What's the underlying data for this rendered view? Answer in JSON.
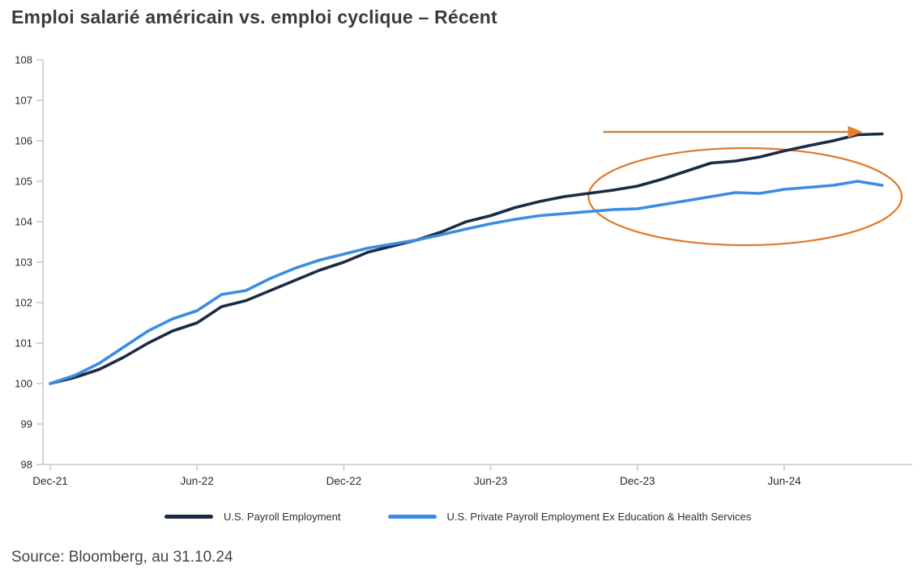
{
  "title": "Emploi salarié américain vs. emploi cyclique – Récent",
  "source": "Source: Bloomberg, au 31.10.24",
  "legend": [
    {
      "label": "U.S. Payroll Employment",
      "color": "#1b2b44"
    },
    {
      "label": "U.S. Private Payroll Employment Ex Education & Health Services",
      "color": "#3a8ce4"
    }
  ],
  "colors": {
    "navy": "#1b2b44",
    "blue": "#3a8ce4",
    "orange_ellipse": "#e0782a",
    "orange_arrow": "#c98443",
    "orange_arrowhead": "#e8812b",
    "axis": "#c9c9c9",
    "tick_text": "#2a2a2a",
    "title_text": "#3b3b3b",
    "source_text": "#454545"
  },
  "chart_data": {
    "type": "line",
    "title": "Emploi salarié américain vs. emploi cyclique – Récent",
    "x_unit": "months since Dec-21",
    "x_tick_labels": [
      "Dec-21",
      "Jun-22",
      "Dec-22",
      "Jun-23",
      "Dec-23",
      "Jun-24"
    ],
    "x_tick_months": [
      0,
      6,
      12,
      18,
      24,
      30
    ],
    "y_ticks": [
      98,
      99,
      100,
      101,
      102,
      103,
      104,
      105,
      106,
      107,
      108
    ],
    "ylim": [
      98,
      108
    ],
    "grid": false,
    "legend_position": "bottom",
    "index_base": "Dec-21 = 100",
    "series": [
      {
        "name": "U.S. Payroll Employment",
        "color": "#1b2b44",
        "values": [
          100.0,
          100.15,
          100.35,
          100.65,
          101.0,
          101.3,
          101.5,
          101.9,
          102.05,
          102.3,
          102.55,
          102.8,
          103.0,
          103.25,
          103.4,
          103.55,
          103.75,
          104.0,
          104.15,
          104.35,
          104.5,
          104.62,
          104.7,
          104.78,
          104.88,
          105.05,
          105.25,
          105.45,
          105.5,
          105.6,
          105.75,
          105.88,
          106.0,
          106.15,
          106.17
        ]
      },
      {
        "name": "U.S. Private Payroll Employment Ex Education & Health Services",
        "color": "#3a8ce4",
        "values": [
          100.0,
          100.2,
          100.5,
          100.9,
          101.3,
          101.6,
          101.8,
          102.2,
          102.3,
          102.6,
          102.85,
          103.05,
          103.2,
          103.35,
          103.45,
          103.55,
          103.68,
          103.82,
          103.95,
          104.06,
          104.15,
          104.2,
          104.25,
          104.3,
          104.32,
          104.42,
          104.52,
          104.62,
          104.72,
          104.7,
          104.8,
          104.85,
          104.9,
          105.0,
          104.9
        ]
      }
    ],
    "annotations": {
      "ellipse": {
        "center_month": 28.4,
        "center_value": 104.62,
        "rx_months": 6.4,
        "ry_values": 1.2
      },
      "arrow": {
        "start_month": 22.6,
        "tip_month": 33.2,
        "value": 106.22,
        "direction": "right"
      }
    }
  }
}
